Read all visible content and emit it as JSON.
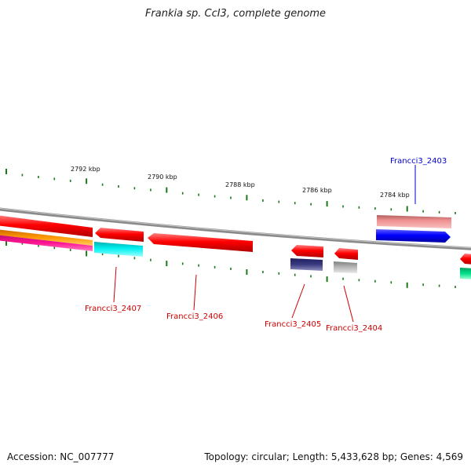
{
  "title": "Frankia sp. CcI3, complete genome",
  "accession_text": "Accession: NC_007777",
  "summary_text": "Topology: circular; Length: 5,433,628 bp; Genes: 4,569",
  "scale_labels": [
    "2792 kbp",
    "2790 kbp",
    "2788 kbp",
    "2786 kbp",
    "2784 kbp"
  ],
  "gene_labels": [
    {
      "name": "Francci3_2403",
      "color": "#0000cc"
    },
    {
      "name": "Francci3_2407",
      "color": "#cc0000"
    },
    {
      "name": "Francci3_2406",
      "color": "#cc0000"
    },
    {
      "name": "Francci3_2405",
      "color": "#cc0000"
    },
    {
      "name": "Francci3_2404",
      "color": "#cc0000"
    }
  ],
  "colors": {
    "backbone": "#8a8a8a",
    "tick": "#1a7a1a",
    "red": "#ff0000",
    "blue": "#0000ff",
    "pink": "#f09090",
    "cyan": "#00f0f0",
    "orange": "#ff9900",
    "magenta": "#ff1493",
    "purple": "#3a3a80",
    "gray": "#b8b8b8",
    "green": "#00e08a"
  }
}
